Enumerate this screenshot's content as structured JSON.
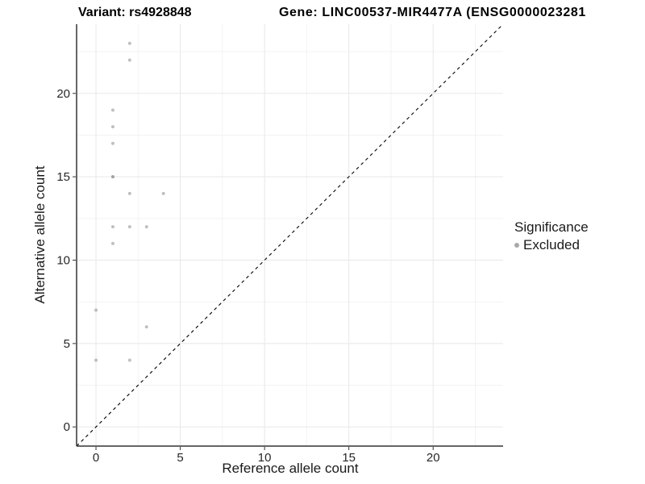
{
  "chart_data": {
    "type": "scatter",
    "titles": [
      "Variant: rs4928848",
      "Gene: LINC00537-MIR4477A (ENSG0000023281"
    ],
    "xlabel": "Reference allele count",
    "ylabel": "Alternative allele count",
    "x_ticks": [
      0,
      5,
      10,
      15,
      20
    ],
    "y_ticks": [
      0,
      5,
      10,
      15,
      20
    ],
    "minor_ticks": [
      2.5,
      7.5,
      12.5,
      17.5,
      22.5
    ],
    "xlim": [
      -1.15,
      24.15
    ],
    "ylim": [
      -1.15,
      24.15
    ],
    "points": [
      [
        0,
        4
      ],
      [
        0,
        7
      ],
      [
        1,
        11
      ],
      [
        1,
        12
      ],
      [
        1,
        15
      ],
      [
        1,
        15
      ],
      [
        1,
        17
      ],
      [
        1,
        18
      ],
      [
        1,
        19
      ],
      [
        2,
        4
      ],
      [
        2,
        12
      ],
      [
        2,
        14
      ],
      [
        2,
        22
      ],
      [
        2,
        23
      ],
      [
        3,
        6
      ],
      [
        3,
        12
      ],
      [
        4,
        14
      ]
    ],
    "point_style": {
      "color": "#8c8c8c",
      "opacity": 0.55,
      "radius": 2
    },
    "identity_line": {
      "style": "dashed",
      "color": "#000000",
      "from": [
        -1.15,
        -1.15
      ],
      "to": [
        24.15,
        24.15
      ]
    },
    "grid": {
      "major_color": "#e8e8e8",
      "minor_color": "#f3f3f3",
      "background": "#ffffff"
    },
    "axis": {
      "line_color": "#333333",
      "tick_color": "#333333",
      "label_color": "#262626"
    },
    "legend": {
      "title": "Significance",
      "position": "right",
      "items": [
        {
          "label": "Excluded",
          "color": "#8c8c8c"
        }
      ]
    }
  }
}
